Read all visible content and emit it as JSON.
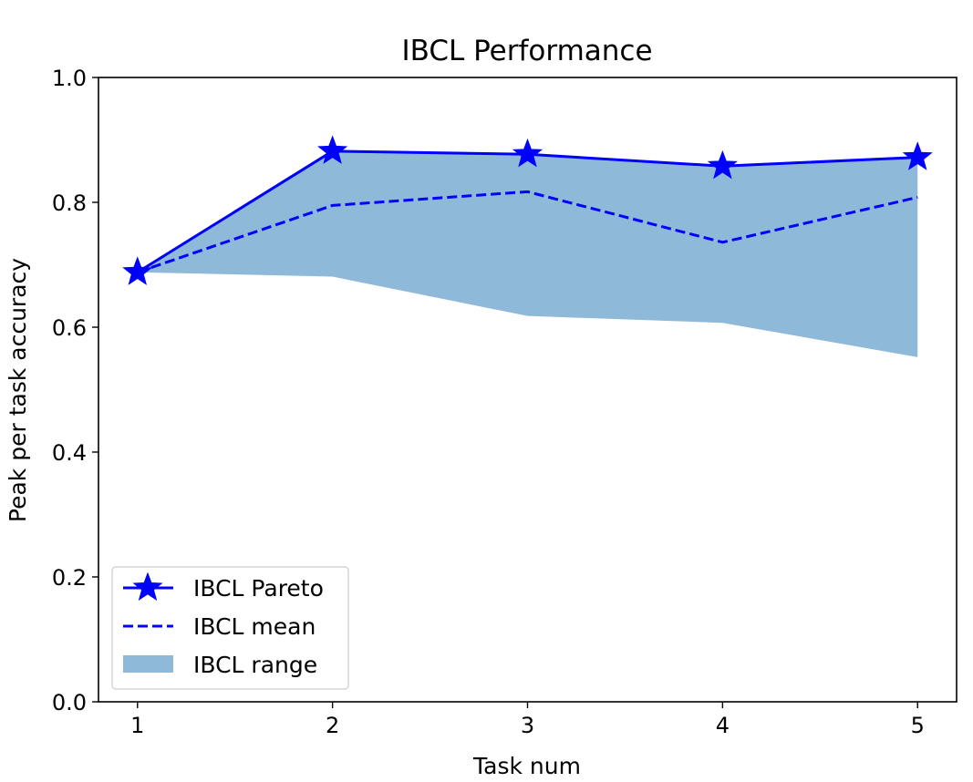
{
  "chart_data": {
    "type": "line",
    "title": "IBCL Performance",
    "xlabel": "Task num",
    "ylabel": "Peak per task accuracy",
    "x": [
      1,
      2,
      3,
      4,
      5
    ],
    "xlim": [
      0.8,
      5.2
    ],
    "ylim": [
      0.0,
      1.0
    ],
    "xticks": [
      "1",
      "2",
      "3",
      "4",
      "5"
    ],
    "yticks": [
      "0.0",
      "0.2",
      "0.4",
      "0.6",
      "0.8",
      "1.0"
    ],
    "grid": false,
    "legend_position": "lower-left",
    "series": [
      {
        "name": "IBCL Pareto",
        "kind": "line-star",
        "color": "#0000ff",
        "values": [
          0.688,
          0.882,
          0.877,
          0.858,
          0.872
        ]
      },
      {
        "name": "IBCL mean",
        "kind": "dashed-line",
        "color": "#0000ff",
        "values": [
          0.688,
          0.795,
          0.817,
          0.736,
          0.808
        ]
      },
      {
        "name": "IBCL range",
        "kind": "band",
        "color": "#8fb9d8",
        "lower": [
          0.688,
          0.681,
          0.618,
          0.607,
          0.552
        ],
        "upper": [
          0.688,
          0.882,
          0.877,
          0.858,
          0.872
        ]
      }
    ]
  }
}
